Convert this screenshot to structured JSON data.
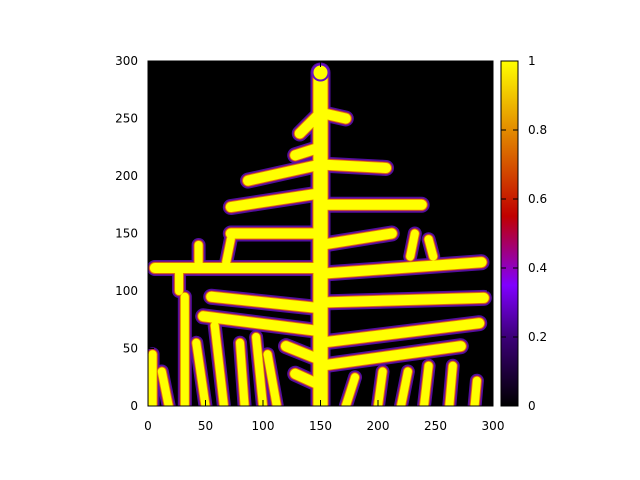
{
  "chart_data": {
    "type": "heatmap",
    "title": "",
    "xlabel": "",
    "ylabel": "",
    "xlim": [
      0,
      300
    ],
    "ylim": [
      0,
      300
    ],
    "x_ticks": [
      0,
      50,
      100,
      150,
      200,
      250,
      300
    ],
    "y_ticks": [
      0,
      50,
      100,
      150,
      200,
      250,
      300
    ],
    "x_tick_labels": [
      "0",
      "50",
      "100",
      "150",
      "200",
      "250",
      "300"
    ],
    "y_tick_labels": [
      "0",
      "50",
      "100",
      "150",
      "200",
      "250",
      "300"
    ],
    "colorbar": {
      "range": [
        0,
        1
      ],
      "ticks": [
        0,
        0.2,
        0.4,
        0.6,
        0.8,
        1
      ],
      "tick_labels": [
        "0",
        "0.2",
        "0.4",
        "0.6",
        "0.8",
        "1"
      ],
      "colormap": "black-purple-red-orange-yellow",
      "stops": [
        "#000000",
        "#3c0078",
        "#8000ff",
        "#c00000",
        "#e08000",
        "#ffff00"
      ]
    },
    "grid": false,
    "description_of_field": "branching fern-like dendrite, value ~1 inside pattern, 0 outside",
    "stem": {
      "x": 150,
      "y_range": [
        0,
        290
      ]
    },
    "branches": [
      {
        "x0": 150,
        "y0": 255,
        "x1": 132,
        "y1": 237
      },
      {
        "x0": 150,
        "y0": 255,
        "x1": 172,
        "y1": 250
      },
      {
        "x0": 150,
        "y0": 225,
        "x1": 128,
        "y1": 218
      },
      {
        "x0": 150,
        "y0": 210,
        "x1": 87,
        "y1": 196
      },
      {
        "x0": 150,
        "y0": 210,
        "x1": 207,
        "y1": 207
      },
      {
        "x0": 150,
        "y0": 185,
        "x1": 72,
        "y1": 173
      },
      {
        "x0": 150,
        "y0": 175,
        "x1": 238,
        "y1": 175
      },
      {
        "x0": 150,
        "y0": 150,
        "x1": 72,
        "y1": 150
      },
      {
        "x0": 150,
        "y0": 140,
        "x1": 212,
        "y1": 150
      },
      {
        "x0": 150,
        "y0": 120,
        "x1": 6,
        "y1": 120
      },
      {
        "x0": 150,
        "y0": 115,
        "x1": 290,
        "y1": 125
      },
      {
        "x0": 150,
        "y0": 85,
        "x1": 55,
        "y1": 95
      },
      {
        "x0": 150,
        "y0": 90,
        "x1": 292,
        "y1": 94
      },
      {
        "x0": 150,
        "y0": 65,
        "x1": 48,
        "y1": 78
      },
      {
        "x0": 150,
        "y0": 55,
        "x1": 288,
        "y1": 72
      },
      {
        "x0": 150,
        "y0": 40,
        "x1": 120,
        "y1": 52
      },
      {
        "x0": 150,
        "y0": 35,
        "x1": 272,
        "y1": 52
      },
      {
        "x0": 150,
        "y0": 18,
        "x1": 128,
        "y1": 28
      }
    ],
    "fingers": [
      {
        "x0": 4,
        "y0": 0,
        "x1": 4,
        "y1": 45
      },
      {
        "x0": 18,
        "y0": 0,
        "x1": 12,
        "y1": 30
      },
      {
        "x0": 32,
        "y0": 0,
        "x1": 32,
        "y1": 95
      },
      {
        "x0": 50,
        "y0": 0,
        "x1": 42,
        "y1": 55
      },
      {
        "x0": 66,
        "y0": 0,
        "x1": 58,
        "y1": 70
      },
      {
        "x0": 84,
        "y0": 0,
        "x1": 80,
        "y1": 55
      },
      {
        "x0": 100,
        "y0": 0,
        "x1": 94,
        "y1": 60
      },
      {
        "x0": 112,
        "y0": 0,
        "x1": 104,
        "y1": 45
      },
      {
        "x0": 172,
        "y0": 0,
        "x1": 180,
        "y1": 25
      },
      {
        "x0": 200,
        "y0": 0,
        "x1": 204,
        "y1": 30
      },
      {
        "x0": 220,
        "y0": 0,
        "x1": 226,
        "y1": 30
      },
      {
        "x0": 240,
        "y0": 0,
        "x1": 244,
        "y1": 35
      },
      {
        "x0": 262,
        "y0": 0,
        "x1": 265,
        "y1": 35
      },
      {
        "x0": 284,
        "y0": 0,
        "x1": 286,
        "y1": 22
      },
      {
        "x0": 27,
        "y0": 118,
        "x1": 27,
        "y1": 100
      },
      {
        "x0": 44,
        "y0": 120,
        "x1": 44,
        "y1": 140
      },
      {
        "x0": 68,
        "y0": 125,
        "x1": 72,
        "y1": 145
      },
      {
        "x0": 228,
        "y0": 130,
        "x1": 232,
        "y1": 150
      },
      {
        "x0": 248,
        "y0": 130,
        "x1": 244,
        "y1": 145
      }
    ]
  }
}
